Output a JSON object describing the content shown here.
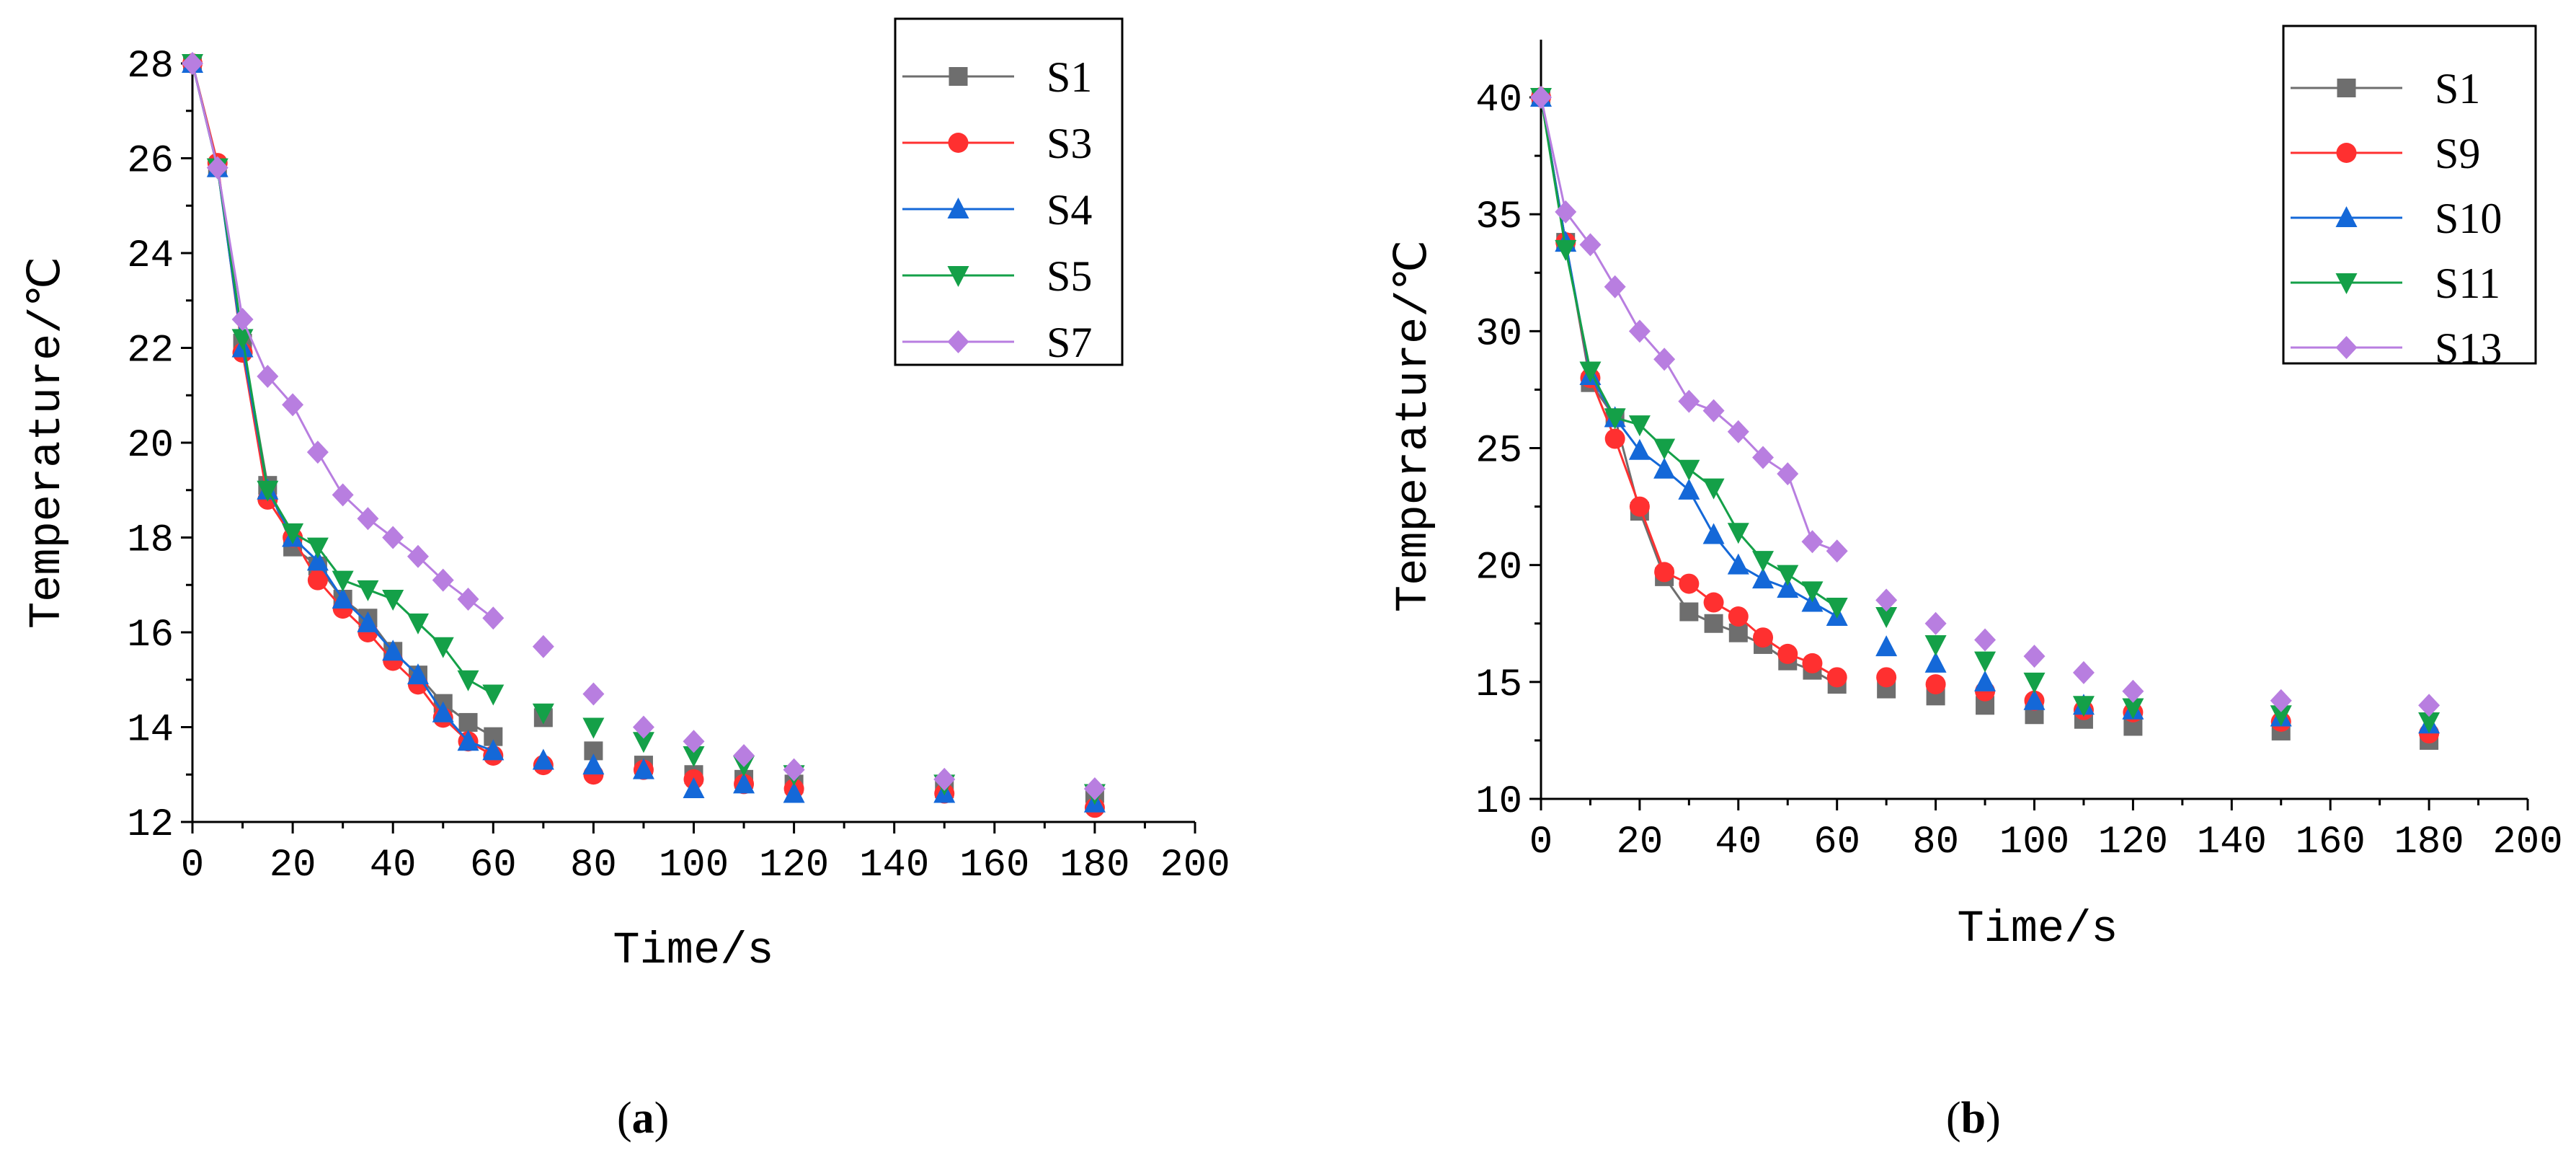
{
  "chart_data": [
    {
      "type": "line",
      "panel_label": "a",
      "xlabel": "Time/s",
      "ylabel": "Temperature/℃",
      "xlim": [
        0,
        200
      ],
      "ylim": [
        12,
        28
      ],
      "xticks": [
        0,
        20,
        40,
        60,
        80,
        100,
        120,
        140,
        160,
        180,
        200
      ],
      "yticks": [
        12,
        14,
        16,
        18,
        20,
        22,
        24,
        26,
        28
      ],
      "legend_position": "top-right",
      "series": [
        {
          "name": "S1",
          "color": "#6e6e6e",
          "marker": "square",
          "x": [
            0,
            5,
            10,
            15,
            20,
            25,
            30,
            35,
            40,
            45,
            50,
            55,
            60,
            70,
            80,
            90,
            100,
            110,
            120,
            150,
            180
          ],
          "y": [
            28,
            25.8,
            22.1,
            19.1,
            17.8,
            17.4,
            16.7,
            16.3,
            15.6,
            15.1,
            14.5,
            14.1,
            13.8,
            14.2,
            13.5,
            13.2,
            13.0,
            12.9,
            12.8,
            12.7,
            12.6
          ]
        },
        {
          "name": "S3",
          "color": "#ff3030",
          "marker": "circle",
          "x": [
            0,
            5,
            10,
            15,
            20,
            25,
            30,
            35,
            40,
            45,
            50,
            55,
            60,
            70,
            80,
            90,
            100,
            110,
            120,
            150,
            180
          ],
          "y": [
            28,
            25.9,
            21.9,
            18.8,
            18.0,
            17.1,
            16.5,
            16.0,
            15.4,
            14.9,
            14.2,
            13.7,
            13.4,
            13.2,
            13.0,
            13.1,
            12.9,
            12.8,
            12.7,
            12.6,
            12.3
          ]
        },
        {
          "name": "S4",
          "color": "#1468d8",
          "marker": "triangle-up",
          "x": [
            0,
            5,
            10,
            15,
            20,
            25,
            30,
            35,
            40,
            45,
            50,
            55,
            60,
            70,
            80,
            90,
            100,
            110,
            120,
            150,
            180
          ],
          "y": [
            28,
            25.8,
            22.0,
            19.0,
            18.0,
            17.5,
            16.7,
            16.2,
            15.6,
            15.1,
            14.3,
            13.7,
            13.5,
            13.3,
            13.2,
            13.1,
            12.7,
            12.8,
            12.6,
            12.6,
            12.4
          ]
        },
        {
          "name": "S5",
          "color": "#14a048",
          "marker": "triangle-down",
          "x": [
            0,
            5,
            10,
            15,
            20,
            25,
            30,
            35,
            40,
            45,
            50,
            55,
            60,
            70,
            80,
            90,
            100,
            110,
            120,
            150,
            180
          ],
          "y": [
            28,
            25.8,
            22.2,
            19.0,
            18.1,
            17.8,
            17.1,
            16.9,
            16.7,
            16.2,
            15.7,
            15.0,
            14.7,
            14.3,
            14.0,
            13.7,
            13.4,
            13.2,
            13.0,
            12.8,
            12.6
          ]
        },
        {
          "name": "S7",
          "color": "#b87ee0",
          "marker": "diamond",
          "x": [
            0,
            5,
            10,
            15,
            20,
            25,
            30,
            35,
            40,
            45,
            50,
            55,
            60,
            70,
            80,
            90,
            100,
            110,
            120,
            150,
            180
          ],
          "y": [
            28,
            25.8,
            22.6,
            21.4,
            20.8,
            19.8,
            18.9,
            18.4,
            18.0,
            17.6,
            17.1,
            16.7,
            16.3,
            15.7,
            14.7,
            14.0,
            13.7,
            13.4,
            13.1,
            12.9,
            12.7
          ]
        }
      ]
    },
    {
      "type": "line",
      "panel_label": "b",
      "xlabel": "Time/s",
      "ylabel": "Temperature/℃",
      "xlim": [
        0,
        200
      ],
      "ylim": [
        10,
        42.5
      ],
      "xticks": [
        0,
        20,
        40,
        60,
        80,
        100,
        120,
        140,
        160,
        180,
        200
      ],
      "yticks": [
        10,
        15,
        20,
        25,
        30,
        35,
        40
      ],
      "legend_position": "top-right",
      "series": [
        {
          "name": "S1",
          "color": "#6e6e6e",
          "marker": "square",
          "x": [
            0,
            5,
            10,
            15,
            20,
            25,
            30,
            35,
            40,
            45,
            50,
            55,
            60,
            70,
            80,
            90,
            100,
            110,
            120,
            150,
            180
          ],
          "y": [
            40,
            33.8,
            27.8,
            26.3,
            22.3,
            19.5,
            18.0,
            17.5,
            17.1,
            16.6,
            15.9,
            15.5,
            14.9,
            14.7,
            14.4,
            14.0,
            13.6,
            13.4,
            13.1,
            12.9,
            12.5
          ]
        },
        {
          "name": "S9",
          "color": "#ff3030",
          "marker": "circle",
          "x": [
            0,
            5,
            10,
            15,
            20,
            25,
            30,
            35,
            40,
            45,
            50,
            55,
            60,
            70,
            80,
            90,
            100,
            110,
            120,
            150,
            180
          ],
          "y": [
            40,
            33.8,
            28.0,
            25.4,
            22.5,
            19.7,
            19.2,
            18.4,
            17.8,
            16.9,
            16.2,
            15.8,
            15.2,
            15.2,
            14.9,
            14.6,
            14.2,
            13.8,
            13.7,
            13.3,
            12.8
          ]
        },
        {
          "name": "S10",
          "color": "#1468d8",
          "marker": "triangle-up",
          "x": [
            0,
            5,
            10,
            15,
            20,
            25,
            30,
            35,
            40,
            45,
            50,
            55,
            60,
            70,
            80,
            90,
            100,
            110,
            120,
            150,
            180
          ],
          "y": [
            40,
            33.8,
            28.1,
            26.3,
            24.9,
            24.1,
            23.2,
            21.3,
            20.0,
            19.4,
            19.0,
            18.4,
            17.8,
            16.5,
            15.8,
            15.0,
            14.2,
            14.0,
            13.8,
            13.5,
            13.2
          ]
        },
        {
          "name": "S11",
          "color": "#14a048",
          "marker": "triangle-down",
          "x": [
            0,
            5,
            10,
            15,
            20,
            25,
            30,
            35,
            40,
            45,
            50,
            55,
            60,
            70,
            80,
            90,
            100,
            110,
            120,
            150,
            180
          ],
          "y": [
            40,
            33.5,
            28.3,
            26.3,
            26.0,
            25.0,
            24.1,
            23.3,
            21.4,
            20.2,
            19.6,
            18.9,
            18.2,
            17.8,
            16.6,
            15.9,
            15.0,
            14.0,
            13.9,
            13.6,
            13.3
          ]
        },
        {
          "name": "S13",
          "color": "#b87ee0",
          "marker": "diamond",
          "x": [
            0,
            5,
            10,
            15,
            20,
            25,
            30,
            35,
            40,
            45,
            50,
            55,
            60,
            70,
            80,
            90,
            100,
            110,
            120,
            150,
            180
          ],
          "y": [
            40,
            35.1,
            33.7,
            31.9,
            30.0,
            28.8,
            27.0,
            26.6,
            25.7,
            24.6,
            23.9,
            21.0,
            20.6,
            18.5,
            17.5,
            16.8,
            16.1,
            15.4,
            14.6,
            14.2,
            14.0
          ]
        }
      ]
    }
  ]
}
